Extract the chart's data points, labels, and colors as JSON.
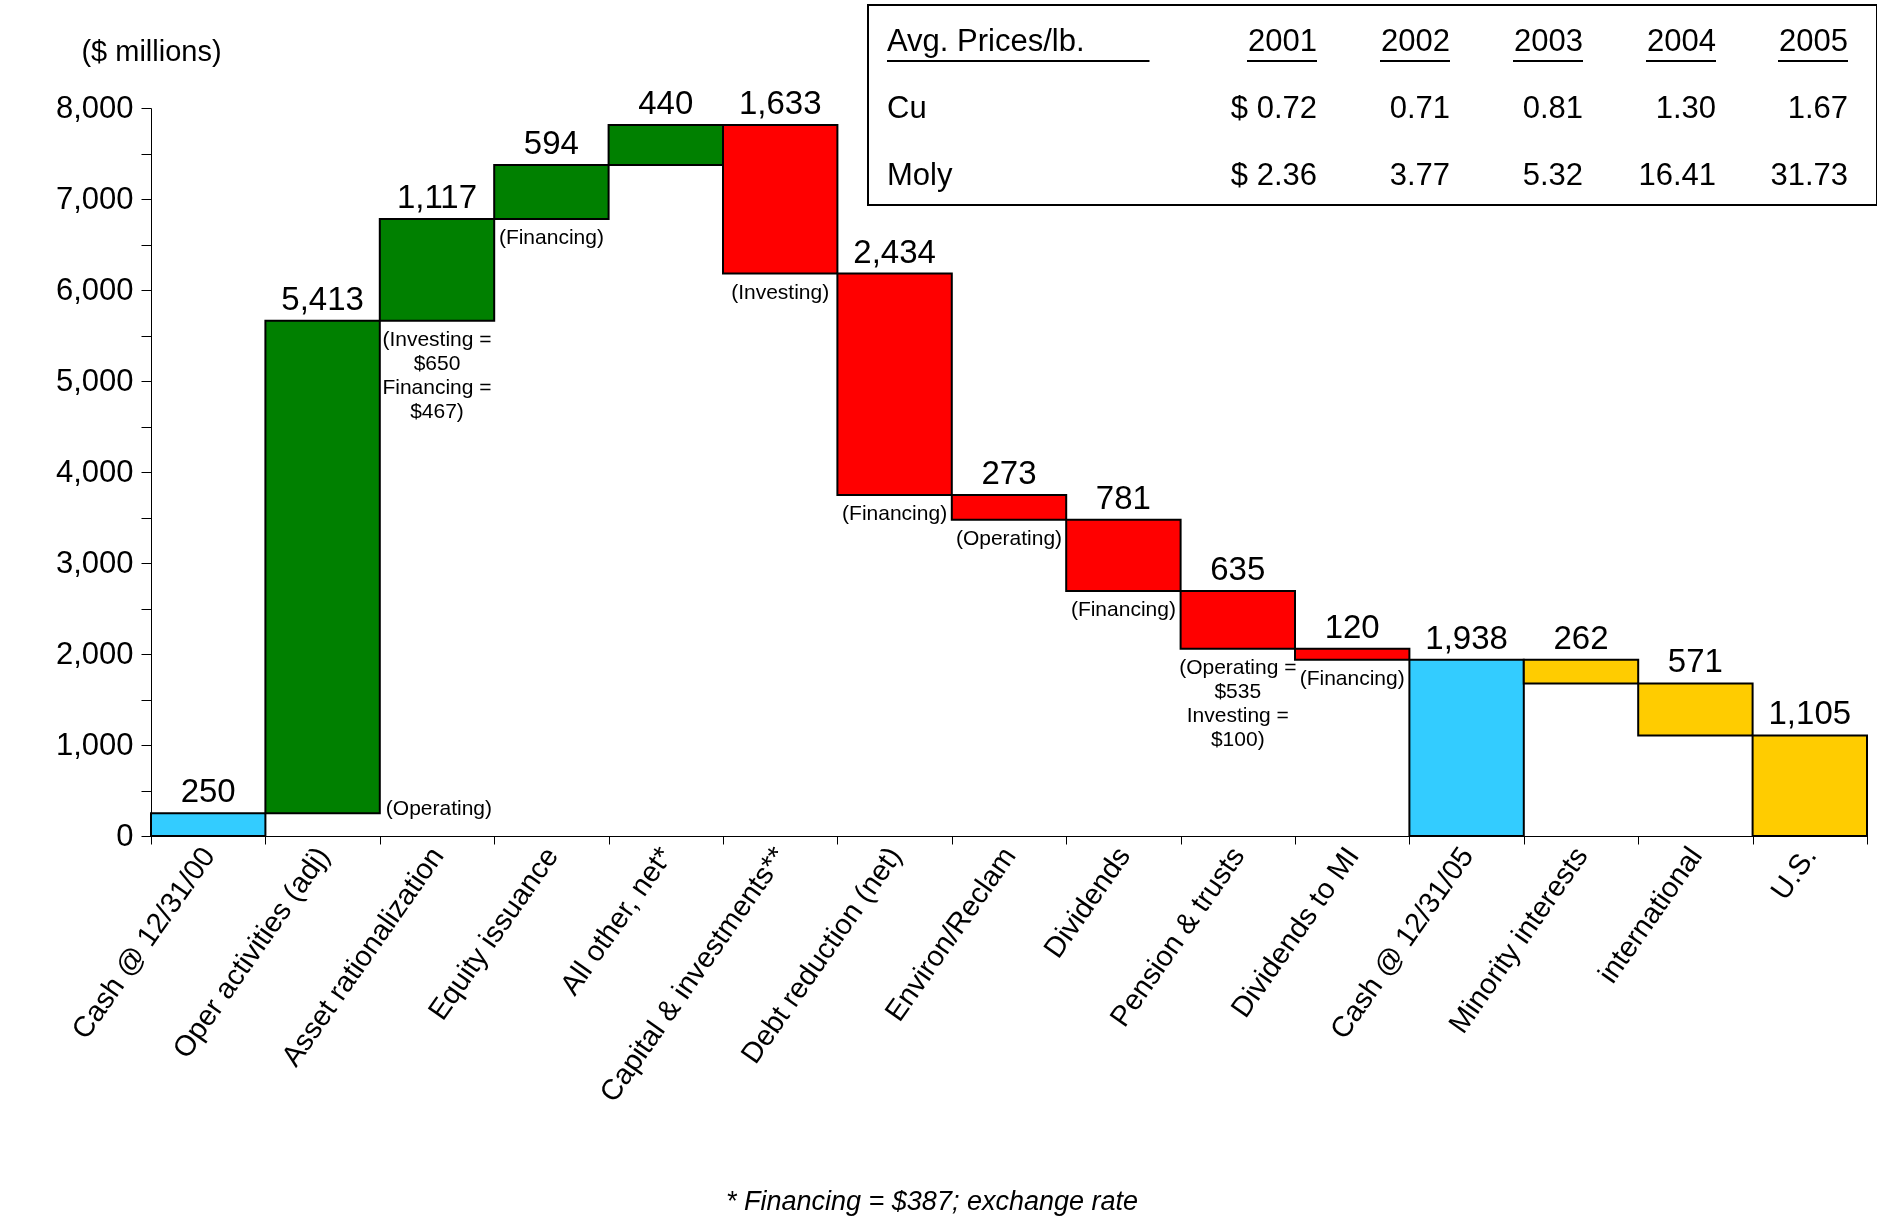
{
  "chart_data": [
    {
      "type": "bar",
      "ylabel": "($ millions)",
      "categories": [
        "Cash @ 12/31/00",
        "Oper activities (adj)",
        "Asset rationalization",
        "Equity issuance",
        "All other, net*",
        "Capital & investments**",
        "Debt reduction (net)",
        "Environ/Reclam",
        "Dividends",
        "Pension & trusts",
        "Dividends to MI",
        "Cash @ 12/31/05",
        "Minority interests",
        "international",
        "U.S."
      ],
      "base": [
        0,
        250,
        5663,
        6780,
        7374,
        7814,
        6181,
        3747,
        3474,
        2693,
        2058,
        0,
        1938,
        1676,
        1105
      ],
      "values": [
        250,
        5413,
        1117,
        594,
        440,
        -1633,
        -2434,
        -273,
        -781,
        -635,
        -120,
        1938,
        -262,
        -571,
        -1105
      ],
      "value_labels": [
        "250",
        "5,413",
        "1,117",
        "594",
        "440",
        "1,633",
        "2,434",
        "273",
        "781",
        "635",
        "120",
        "1,938",
        "262",
        "571",
        "1,105"
      ],
      "colors": [
        "#33ccff",
        "#008000",
        "#008000",
        "#008000",
        "#008000",
        "#ff0000",
        "#ff0000",
        "#ff0000",
        "#ff0000",
        "#ff0000",
        "#ff0000",
        "#33ccff",
        "#ffcc00",
        "#ffcc00",
        "#ffcc00"
      ],
      "ylim": [
        0,
        8000
      ],
      "yticks": [
        0,
        {
          "value": 500,
          "label": null
        },
        {
          "value": 1000,
          "label": "1,000"
        },
        {
          "value": 1500,
          "label": null
        },
        {
          "value": 2000,
          "label": "2,000"
        },
        {
          "value": 2500,
          "label": null
        },
        {
          "value": 3000,
          "label": "3,000"
        },
        {
          "value": 3500,
          "label": null
        },
        {
          "value": 4000,
          "label": "4,000"
        },
        {
          "value": 4500,
          "label": null
        },
        {
          "value": 5000,
          "label": "5,000"
        },
        {
          "value": 5500,
          "label": null
        },
        {
          "value": 6000,
          "label": "6,000"
        },
        {
          "value": 6500,
          "label": null
        },
        {
          "value": 7000,
          "label": "7,000"
        },
        {
          "value": 7500,
          "label": null
        },
        {
          "value": 8000,
          "label": "8,000"
        }
      ],
      "grid": false,
      "annotations": [
        {
          "text": "(Operating)",
          "x": "Oper activities (adj)",
          "y": 250
        },
        {
          "text": "(Investing =\n$650\nFinancing =\n$467)",
          "x": "Asset rationalization",
          "y": 5663
        },
        {
          "text": "(Financing)",
          "x": "Equity issuance",
          "y": 6780
        },
        {
          "text": "(Investing)",
          "x": "Capital & investments**",
          "y": 6181
        },
        {
          "text": "(Financing)",
          "x": "Debt reduction (net)",
          "y": 3747
        },
        {
          "text": "(Operating)",
          "x": "Environ/Reclam",
          "y": 3474
        },
        {
          "text": "(Financing)",
          "x": "Dividends",
          "y": 2693
        },
        {
          "text": "(Operating =\n$535\nInvesting =\n$100)",
          "x": "Pension & trusts",
          "y": 2058
        },
        {
          "text": "(Financing)",
          "x": "Dividends to MI",
          "y": 1938
        },
        "Avg. Prices/lb.",
        "2001",
        "2002",
        "2003",
        "2004",
        "2005",
        "Cu",
        "$ 0.72",
        "0.71",
        "0.81",
        "1.30",
        "1.67",
        "Moly",
        "$ 2.36",
        "3.77",
        "5.32",
        "16.41",
        "31.73",
        "* Financing = $387; exchange rate"
      ]
    }
  ]
}
